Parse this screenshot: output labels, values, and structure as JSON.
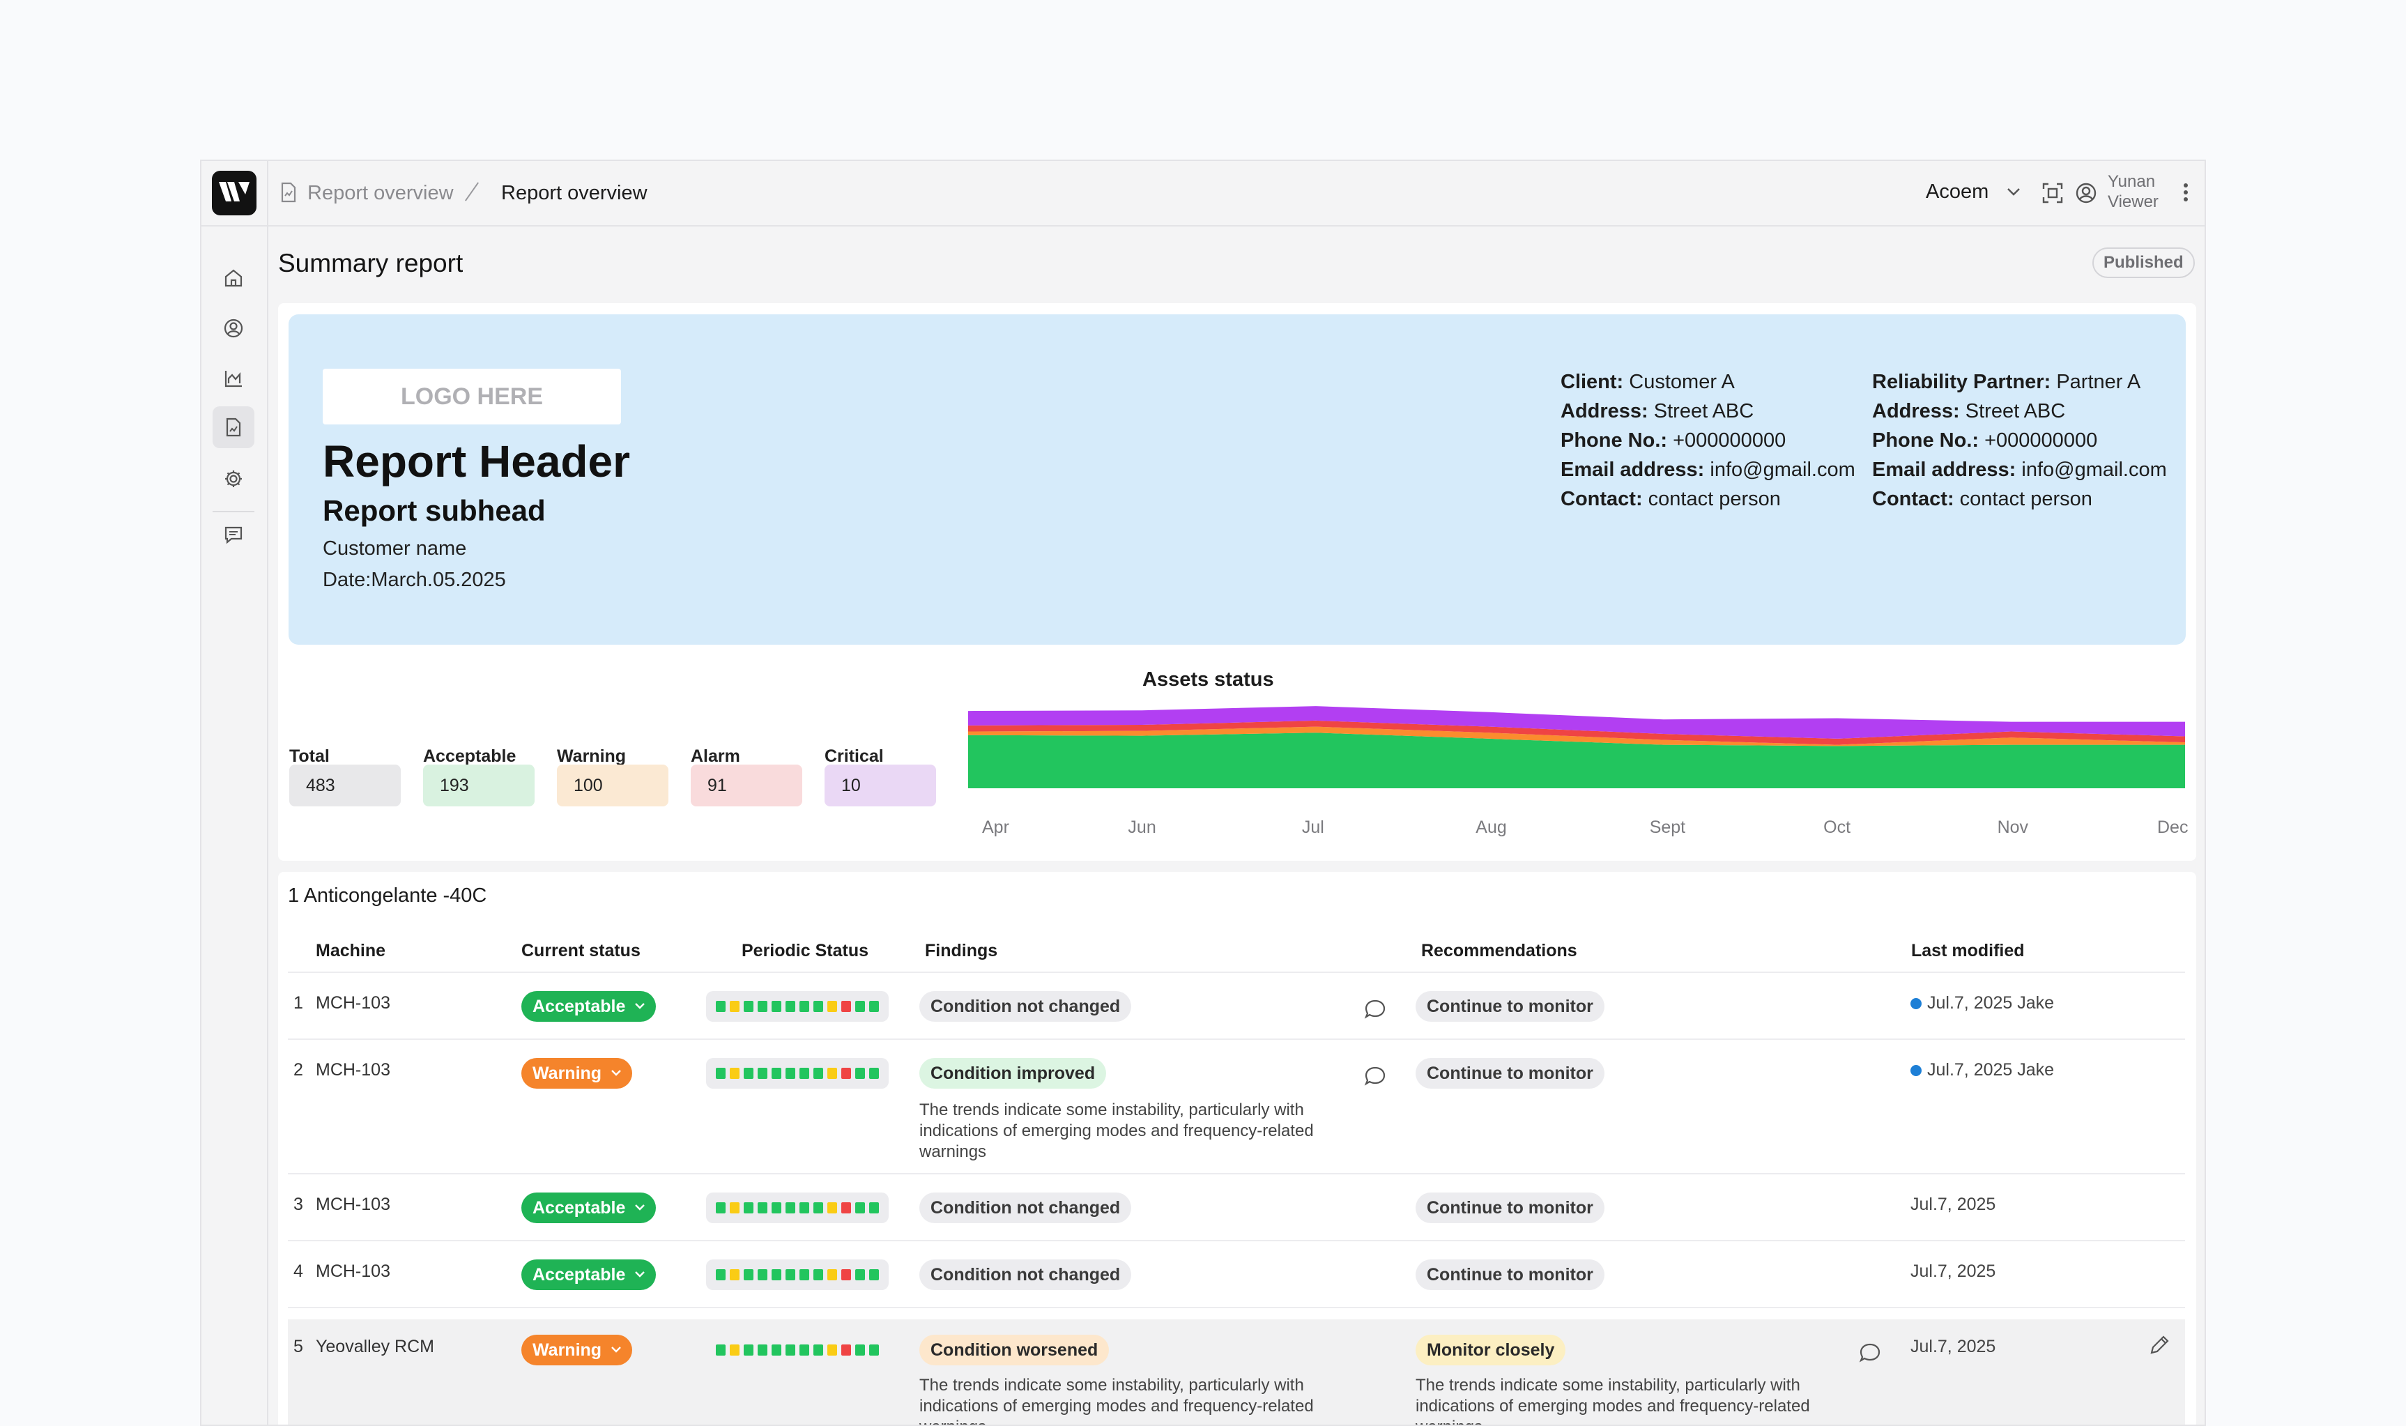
{
  "breadcrumb": {
    "parent": "Report overview",
    "current": "Report overview"
  },
  "topbar": {
    "org": "Acoem",
    "user_name": "Yunan",
    "user_role": "Viewer"
  },
  "page": {
    "title": "Summary report",
    "status_badge": "Published"
  },
  "hero": {
    "logo_placeholder": "LOGO HERE",
    "header": "Report Header",
    "subhead": "Report subhead",
    "customer": "Customer name",
    "date": "Date:March.05.2025",
    "client": [
      {
        "label": "Client:",
        "value": "Customer A"
      },
      {
        "label": "Address:",
        "value": "Street ABC"
      },
      {
        "label": "Phone No.:",
        "value": "+000000000"
      },
      {
        "label": "Email address:",
        "value": "info@gmail.com"
      },
      {
        "label": "Contact:",
        "value": "contact person"
      }
    ],
    "partner": [
      {
        "label": "Reliability Partner:",
        "value": "Partner A"
      },
      {
        "label": "Address:",
        "value": "Street ABC"
      },
      {
        "label": "Phone No.:",
        "value": "+000000000"
      },
      {
        "label": "Email address:",
        "value": "info@gmail.com"
      },
      {
        "label": "Contact:",
        "value": "contact person"
      }
    ]
  },
  "stats": [
    {
      "label": "Total",
      "value": "483",
      "color": "#e8e8ea"
    },
    {
      "label": "Acceptable",
      "value": "193",
      "color": "#d9f2e0"
    },
    {
      "label": "Warning",
      "value": "100",
      "color": "#fbe9d3"
    },
    {
      "label": "Alarm",
      "value": "91",
      "color": "#f9dbdc"
    },
    {
      "label": "Critical",
      "value": "10",
      "color": "#ead8f5"
    }
  ],
  "chart_data": {
    "type": "area",
    "title": "Assets status",
    "categories": [
      "Apr",
      "Jun",
      "Jul",
      "Aug",
      "Sept",
      "Oct",
      "Nov",
      "Dec"
    ],
    "stacked": true,
    "series": [
      {
        "color": "#22c55e",
        "values": [
          88,
          87,
          92,
          82,
          72,
          70,
          72,
          72
        ]
      },
      {
        "color": "#fb8c2e",
        "values": [
          6,
          8,
          10,
          10,
          8,
          2,
          12,
          4
        ]
      },
      {
        "color": "#ef4444",
        "values": [
          10,
          10,
          10,
          10,
          10,
          10,
          10,
          10
        ]
      },
      {
        "color": "#b23ff2",
        "values": [
          24,
          24,
          24,
          24,
          24,
          34,
          16,
          24
        ]
      }
    ]
  },
  "table": {
    "section_title": "1 Anticongelante -40C",
    "headers": {
      "machine": "Machine",
      "current_status": "Current status",
      "periodic_status": "Periodic Status",
      "findings": "Findings",
      "recommendations": "Recommendations",
      "last_modified": "Last modified"
    },
    "rows": [
      {
        "num": "1",
        "machine": "MCH-103",
        "status": "Acceptable",
        "finding": "Condition not changed",
        "rec": "Continue to monitor",
        "modified": "Jul.7, 2025 Jake"
      },
      {
        "num": "2",
        "machine": "MCH-103",
        "status": "Warning",
        "finding": "Condition improved",
        "finding_desc": "The trends indicate some instability, particularly with indications of emerging modes and frequency-related warnings",
        "rec": "Continue to monitor",
        "modified": "Jul.7, 2025 Jake"
      },
      {
        "num": "3",
        "machine": "MCH-103",
        "status": "Acceptable",
        "finding": "Condition not changed",
        "rec": "Continue to monitor",
        "modified": "Jul.7, 2025"
      },
      {
        "num": "4",
        "machine": "MCH-103",
        "status": "Acceptable",
        "finding": "Condition not changed",
        "rec": "Continue to monitor",
        "modified": "Jul.7, 2025"
      },
      {
        "num": "5",
        "machine": "Yeovalley RCM",
        "status": "Warning",
        "finding": "Condition worsened",
        "finding_desc": "The trends indicate some instability, particularly with indications of emerging modes and frequency-related warnings",
        "rec": "Monitor closely",
        "rec_desc": "The trends indicate some instability, particularly with indications of emerging modes and frequency-related warnings",
        "modified": "Jul.7, 2025"
      }
    ],
    "periodic_colors": [
      "#22c55e",
      "#facc15",
      "#22c55e",
      "#22c55e",
      "#22c55e",
      "#22c55e",
      "#22c55e",
      "#22c55e",
      "#facc15",
      "#ef4444",
      "#22c55e",
      "#22c55e"
    ]
  }
}
